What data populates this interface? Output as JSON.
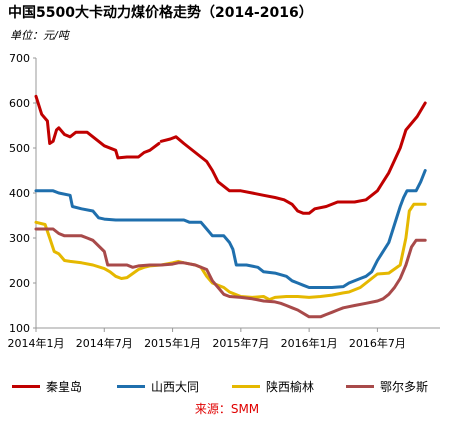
{
  "title": "中国5500大卡动力煤价格走势（2014-2016）",
  "unit": "单位：元/吨",
  "source": "来源：SMM",
  "chart_data": {
    "type": "line",
    "ylim": [
      100,
      700
    ],
    "yticks": [
      100,
      200,
      300,
      400,
      500,
      600,
      700
    ],
    "xlim": [
      0,
      35.5
    ],
    "xticks": [
      {
        "x": 0,
        "label": "2014年1月"
      },
      {
        "x": 6,
        "label": "2014年7月"
      },
      {
        "x": 12,
        "label": "2015年1月"
      },
      {
        "x": 18,
        "label": "2015年7月"
      },
      {
        "x": 24,
        "label": "2016年1月"
      },
      {
        "x": 30,
        "label": "2016年7月"
      }
    ],
    "grid": false,
    "legend_position": "bottom",
    "series": [
      {
        "name": "秦皇岛",
        "color": "#c00000",
        "points": [
          [
            0,
            615
          ],
          [
            0.5,
            575
          ],
          [
            1.0,
            560
          ],
          [
            1.2,
            510
          ],
          [
            1.5,
            515
          ],
          [
            1.8,
            540
          ],
          [
            2.0,
            545
          ],
          [
            2.5,
            530
          ],
          [
            3.0,
            525
          ],
          [
            3.5,
            535
          ],
          [
            4.5,
            535
          ],
          [
            5.0,
            525
          ],
          [
            6.0,
            505
          ],
          [
            7.0,
            495
          ],
          [
            7.2,
            478
          ],
          [
            8.0,
            480
          ],
          [
            9.0,
            480
          ],
          [
            9.5,
            490
          ],
          [
            10.0,
            495
          ],
          [
            10.8,
            510
          ],
          null,
          [
            11.0,
            515
          ],
          [
            11.8,
            520
          ],
          [
            12.3,
            525
          ],
          [
            13.0,
            510
          ],
          [
            14.0,
            490
          ],
          [
            14.5,
            480
          ],
          [
            15.0,
            470
          ],
          [
            15.5,
            450
          ],
          [
            16.0,
            425
          ],
          [
            16.5,
            415
          ],
          [
            17.0,
            405
          ],
          [
            18.0,
            405
          ],
          [
            19.0,
            400
          ],
          [
            20.0,
            395
          ],
          [
            21.0,
            390
          ],
          [
            21.8,
            385
          ],
          [
            22.5,
            375
          ],
          [
            23.0,
            360
          ],
          [
            23.5,
            355
          ],
          [
            24.0,
            355
          ],
          [
            24.5,
            365
          ],
          [
            25.5,
            370
          ],
          [
            26.5,
            380
          ],
          [
            28.0,
            380
          ],
          [
            29.0,
            385
          ],
          [
            30.0,
            405
          ],
          [
            31.0,
            445
          ],
          [
            32.0,
            500
          ],
          [
            32.5,
            540
          ],
          [
            33.5,
            570
          ],
          [
            34.2,
            600
          ]
        ]
      },
      {
        "name": "山西大同",
        "color": "#1f6fad",
        "points": [
          [
            0,
            405
          ],
          [
            1.5,
            405
          ],
          [
            2.0,
            400
          ],
          [
            3.0,
            395
          ],
          [
            3.2,
            370
          ],
          [
            4.0,
            365
          ],
          [
            5.0,
            360
          ],
          [
            5.5,
            345
          ],
          [
            6.0,
            342
          ],
          [
            7.0,
            340
          ],
          [
            8.0,
            340
          ],
          [
            9.0,
            340
          ],
          [
            10.0,
            340
          ],
          [
            11.0,
            340
          ],
          [
            12.0,
            340
          ],
          [
            13.0,
            340
          ],
          [
            13.5,
            335
          ],
          [
            14.5,
            335
          ],
          [
            15.0,
            320
          ],
          [
            15.5,
            305
          ],
          [
            16.5,
            305
          ],
          [
            17.0,
            290
          ],
          [
            17.3,
            275
          ],
          [
            17.6,
            240
          ],
          [
            18.5,
            240
          ],
          [
            19.5,
            235
          ],
          [
            20.0,
            225
          ],
          [
            21.0,
            222
          ],
          [
            22.0,
            215
          ],
          [
            22.5,
            205
          ],
          [
            23.0,
            200
          ],
          [
            23.5,
            195
          ],
          [
            24.0,
            190
          ],
          [
            26.0,
            190
          ],
          [
            27.0,
            192
          ],
          [
            27.5,
            200
          ],
          [
            28.5,
            210
          ],
          [
            29.0,
            215
          ],
          [
            29.5,
            225
          ],
          [
            30.0,
            250
          ],
          [
            31.0,
            290
          ],
          [
            31.5,
            330
          ],
          [
            32.0,
            370
          ],
          [
            32.3,
            390
          ],
          [
            32.6,
            405
          ],
          [
            33.0,
            405
          ],
          [
            33.4,
            405
          ],
          [
            33.8,
            425
          ],
          [
            34.2,
            450
          ]
        ]
      },
      {
        "name": "陕西榆林",
        "color": "#e5b800",
        "points": [
          [
            0,
            335
          ],
          [
            0.8,
            330
          ],
          [
            1.2,
            300
          ],
          [
            1.6,
            270
          ],
          [
            2.0,
            265
          ],
          [
            2.5,
            250
          ],
          [
            3.0,
            248
          ],
          [
            4.0,
            245
          ],
          [
            5.0,
            240
          ],
          [
            6.0,
            232
          ],
          [
            6.5,
            225
          ],
          [
            7.0,
            215
          ],
          [
            7.5,
            210
          ],
          [
            8.0,
            212
          ],
          [
            9.0,
            230
          ],
          [
            9.5,
            235
          ],
          [
            10.0,
            238
          ],
          [
            11.0,
            240
          ],
          [
            12.0,
            245
          ],
          [
            12.5,
            248
          ],
          [
            13.0,
            245
          ],
          [
            14.0,
            240
          ],
          [
            14.5,
            235
          ],
          [
            15.0,
            215
          ],
          [
            15.5,
            200
          ],
          [
            16.0,
            195
          ],
          [
            16.5,
            190
          ],
          [
            17.0,
            180
          ],
          [
            17.5,
            175
          ],
          [
            18.0,
            170
          ],
          [
            19.0,
            168
          ],
          [
            20.0,
            170
          ],
          [
            20.5,
            163
          ],
          [
            21.0,
            168
          ],
          [
            22.0,
            170
          ],
          [
            23.0,
            170
          ],
          [
            24.0,
            168
          ],
          [
            25.0,
            170
          ],
          [
            26.0,
            173
          ],
          [
            27.0,
            178
          ],
          [
            27.5,
            180
          ],
          [
            28.5,
            190
          ],
          [
            29.5,
            210
          ],
          [
            30.0,
            220
          ],
          [
            31.0,
            222
          ],
          [
            32.0,
            240
          ],
          [
            32.5,
            300
          ],
          [
            32.8,
            360
          ],
          [
            33.2,
            375
          ],
          [
            34.2,
            375
          ]
        ]
      },
      {
        "name": "鄂尔多斯",
        "color": "#a84a4a",
        "points": [
          [
            0,
            320
          ],
          [
            1.5,
            320
          ],
          [
            2.0,
            310
          ],
          [
            2.5,
            305
          ],
          [
            4.0,
            305
          ],
          [
            4.5,
            300
          ],
          [
            5.0,
            295
          ],
          [
            6.0,
            270
          ],
          [
            6.3,
            240
          ],
          [
            8.0,
            240
          ],
          [
            8.5,
            235
          ],
          [
            9.0,
            238
          ],
          [
            10.0,
            240
          ],
          [
            11.0,
            240
          ],
          [
            12.0,
            242
          ],
          [
            12.5,
            245
          ],
          [
            13.0,
            245
          ],
          [
            14.0,
            240
          ],
          [
            15.0,
            230
          ],
          [
            15.5,
            205
          ],
          [
            16.0,
            190
          ],
          [
            16.5,
            175
          ],
          [
            17.0,
            170
          ],
          [
            18.0,
            168
          ],
          [
            19.0,
            165
          ],
          [
            20.0,
            160
          ],
          [
            21.0,
            158
          ],
          [
            21.5,
            155
          ],
          [
            22.0,
            150
          ],
          [
            22.5,
            145
          ],
          [
            23.0,
            140
          ],
          [
            24.0,
            125
          ],
          [
            25.0,
            125
          ],
          [
            25.5,
            130
          ],
          [
            26.0,
            135
          ],
          [
            26.5,
            140
          ],
          [
            27.0,
            145
          ],
          [
            28.0,
            150
          ],
          [
            29.0,
            155
          ],
          [
            30.0,
            160
          ],
          [
            30.5,
            165
          ],
          [
            31.0,
            175
          ],
          [
            31.5,
            190
          ],
          [
            32.0,
            210
          ],
          [
            32.5,
            240
          ],
          [
            33.0,
            280
          ],
          [
            33.4,
            295
          ],
          [
            34.2,
            295
          ]
        ]
      }
    ]
  }
}
